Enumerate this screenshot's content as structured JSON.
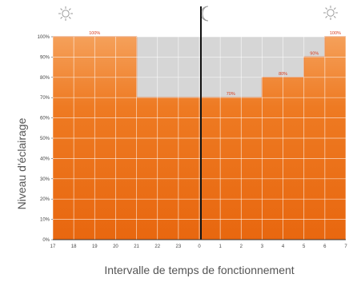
{
  "chart_data": {
    "type": "area",
    "xlabel": "Intervalle de temps de fonctionnement",
    "ylabel": "Niveau d'éclairage",
    "x_ticks": [
      "17",
      "18",
      "19",
      "20",
      "21",
      "22",
      "23",
      "0",
      "1",
      "2",
      "3",
      "4",
      "5",
      "6",
      "7"
    ],
    "y_ticks": [
      "0%",
      "10%",
      "20%",
      "30%",
      "40%",
      "50%",
      "60%",
      "70%",
      "80%",
      "90%",
      "100%"
    ],
    "ylim": [
      0,
      100
    ],
    "grid": true,
    "series": [
      {
        "segments": [
          {
            "x_start": "17",
            "x_end": "21",
            "value": 100
          },
          {
            "x_start": "21",
            "x_end": "2",
            "value": 70
          },
          {
            "x_start": "2",
            "x_end": "3",
            "value": 70
          },
          {
            "x_start": "3",
            "x_end": "5",
            "value": 80
          },
          {
            "x_start": "5",
            "x_end": "6",
            "value": 90
          },
          {
            "x_start": "6",
            "x_end": "7",
            "value": 100
          }
        ]
      }
    ],
    "value_labels": [
      "100%",
      "70%",
      "80%",
      "90%",
      "100%"
    ],
    "icons": [
      "sun-icon",
      "moon-icon",
      "sun-icon"
    ],
    "colors": {
      "fill_top": "#f59a4a",
      "fill_bottom": "#e8670f",
      "background": "#d6d6d6",
      "grid": "#ffffff",
      "label": "#d83a1a"
    }
  }
}
